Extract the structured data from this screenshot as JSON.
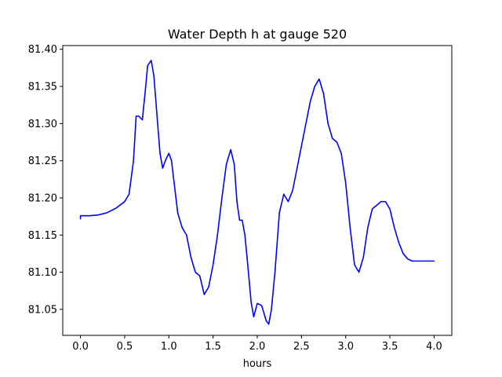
{
  "chart_data": {
    "type": "line",
    "title": "Water Depth h at gauge 520",
    "xlabel": "hours",
    "ylabel": "",
    "xlim": [
      -0.2,
      4.2
    ],
    "ylim": [
      81.015,
      81.405
    ],
    "xticks": [
      0.0,
      0.5,
      1.0,
      1.5,
      2.0,
      2.5,
      3.0,
      3.5,
      4.0
    ],
    "xtick_labels": [
      "0.0",
      "0.5",
      "1.0",
      "1.5",
      "2.0",
      "2.5",
      "3.0",
      "3.5",
      "4.0"
    ],
    "yticks": [
      81.05,
      81.1,
      81.15,
      81.2,
      81.25,
      81.3,
      81.35,
      81.4
    ],
    "ytick_labels": [
      "81.05",
      "81.10",
      "81.15",
      "81.20",
      "81.25",
      "81.30",
      "81.35",
      "81.40"
    ],
    "grid": false,
    "series": [
      {
        "color": "#0000ff",
        "x": [
          0.0,
          0.0,
          0.1,
          0.2,
          0.3,
          0.4,
          0.5,
          0.55,
          0.6,
          0.63,
          0.66,
          0.7,
          0.73,
          0.76,
          0.8,
          0.83,
          0.86,
          0.9,
          0.93,
          0.96,
          1.0,
          1.03,
          1.06,
          1.1,
          1.15,
          1.2,
          1.25,
          1.3,
          1.35,
          1.4,
          1.45,
          1.5,
          1.55,
          1.6,
          1.65,
          1.7,
          1.74,
          1.77,
          1.8,
          1.83,
          1.86,
          1.9,
          1.93,
          1.96,
          2.0,
          2.05,
          2.1,
          2.13,
          2.16,
          2.2,
          2.25,
          2.3,
          2.35,
          2.4,
          2.45,
          2.5,
          2.55,
          2.6,
          2.65,
          2.7,
          2.75,
          2.8,
          2.85,
          2.9,
          2.95,
          3.0,
          3.05,
          3.1,
          3.15,
          3.2,
          3.25,
          3.3,
          3.35,
          3.4,
          3.45,
          3.5,
          3.55,
          3.6,
          3.65,
          3.7,
          3.75,
          3.8,
          3.85,
          3.9,
          3.95,
          4.0
        ],
        "y": [
          81.172,
          81.176,
          81.176,
          81.177,
          81.18,
          81.186,
          81.195,
          81.205,
          81.25,
          81.31,
          81.31,
          81.305,
          81.34,
          81.378,
          81.385,
          81.365,
          81.32,
          81.26,
          81.24,
          81.25,
          81.26,
          81.25,
          81.22,
          81.18,
          81.16,
          81.15,
          81.12,
          81.1,
          81.095,
          81.07,
          81.08,
          81.11,
          81.15,
          81.2,
          81.245,
          81.265,
          81.245,
          81.195,
          81.17,
          81.17,
          81.15,
          81.1,
          81.06,
          81.04,
          81.058,
          81.055,
          81.035,
          81.03,
          81.05,
          81.1,
          81.18,
          81.205,
          81.195,
          81.21,
          81.24,
          81.27,
          81.3,
          81.33,
          81.35,
          81.36,
          81.34,
          81.3,
          81.28,
          81.275,
          81.26,
          81.22,
          81.16,
          81.11,
          81.1,
          81.12,
          81.16,
          81.185,
          81.19,
          81.195,
          81.195,
          81.185,
          81.16,
          81.14,
          81.125,
          81.118,
          81.115,
          81.115,
          81.115,
          81.115,
          81.115,
          81.115
        ]
      }
    ]
  }
}
